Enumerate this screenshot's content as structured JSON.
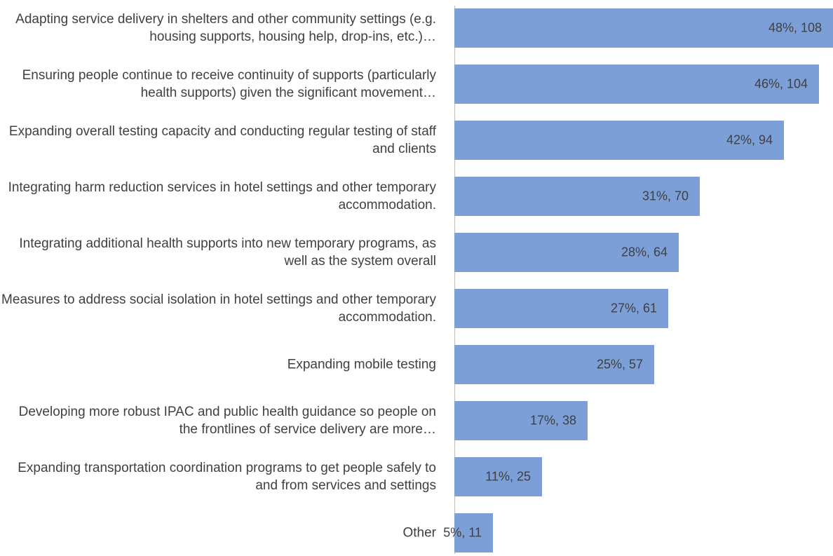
{
  "chart_data": {
    "type": "bar",
    "orientation": "horizontal",
    "color": "#7b9fd6",
    "categories": [
      "Adapting service delivery in shelters and other community settings (e.g. housing supports, housing help, drop-ins, etc.)…",
      "Ensuring people continue to receive continuity of supports (particularly health supports) given the significant movement…",
      "Expanding overall testing capacity and conducting regular testing of staff and clients",
      "Integrating harm reduction services in hotel settings and other temporary accommodation.",
      "Integrating additional health supports into new temporary programs, as well as the system overall",
      "Measures to address social isolation in hotel settings and other temporary accommodation.",
      "Expanding mobile testing",
      "Developing more robust IPAC and public health guidance so people on the frontlines of service delivery are more…",
      "Expanding transportation coordination programs to get people safely to and from services and settings",
      "Other"
    ],
    "values": [
      108,
      104,
      94,
      70,
      64,
      61,
      57,
      38,
      25,
      11
    ],
    "value_labels": [
      "48%, 108",
      "46%, 104",
      "42%, 94",
      "31%, 70",
      "28%, 64",
      "27%, 61",
      "25%, 57",
      "17%, 38",
      "11%, 25",
      "5%, 11"
    ]
  }
}
